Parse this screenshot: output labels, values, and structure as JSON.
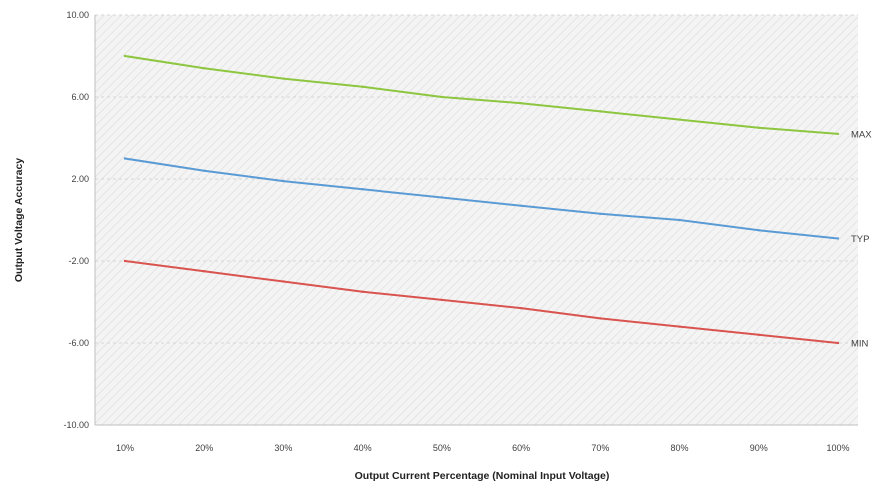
{
  "chart_data": {
    "type": "line",
    "xlabel": "Output Current Percentage (Nominal Input Voltage)",
    "ylabel": "Output Voltage Accuracy",
    "categories": [
      "10%",
      "20%",
      "30%",
      "40%",
      "50%",
      "60%",
      "70%",
      "80%",
      "90%",
      "100%"
    ],
    "y_ticks": [
      "10.00",
      "6.00",
      "2.00",
      "-2.00",
      "-6.00",
      "-10.00"
    ],
    "ylim": [
      -10,
      10
    ],
    "grid": "dashed horizontal",
    "legend": "labels at line ends, right",
    "series": [
      {
        "name": "MAX",
        "color": "#8dc63f",
        "values": [
          8.0,
          7.4,
          6.9,
          6.5,
          6.0,
          5.7,
          5.3,
          4.9,
          4.5,
          4.2
        ]
      },
      {
        "name": "TYP",
        "color": "#5b9bd5",
        "values": [
          3.0,
          2.4,
          1.9,
          1.5,
          1.1,
          0.7,
          0.3,
          0.0,
          -0.5,
          -0.9
        ]
      },
      {
        "name": "MIN",
        "color": "#d9534f",
        "values": [
          -2.0,
          -2.5,
          -3.0,
          -3.5,
          -3.9,
          -4.3,
          -4.8,
          -5.2,
          -5.6,
          -6.0
        ]
      }
    ]
  }
}
